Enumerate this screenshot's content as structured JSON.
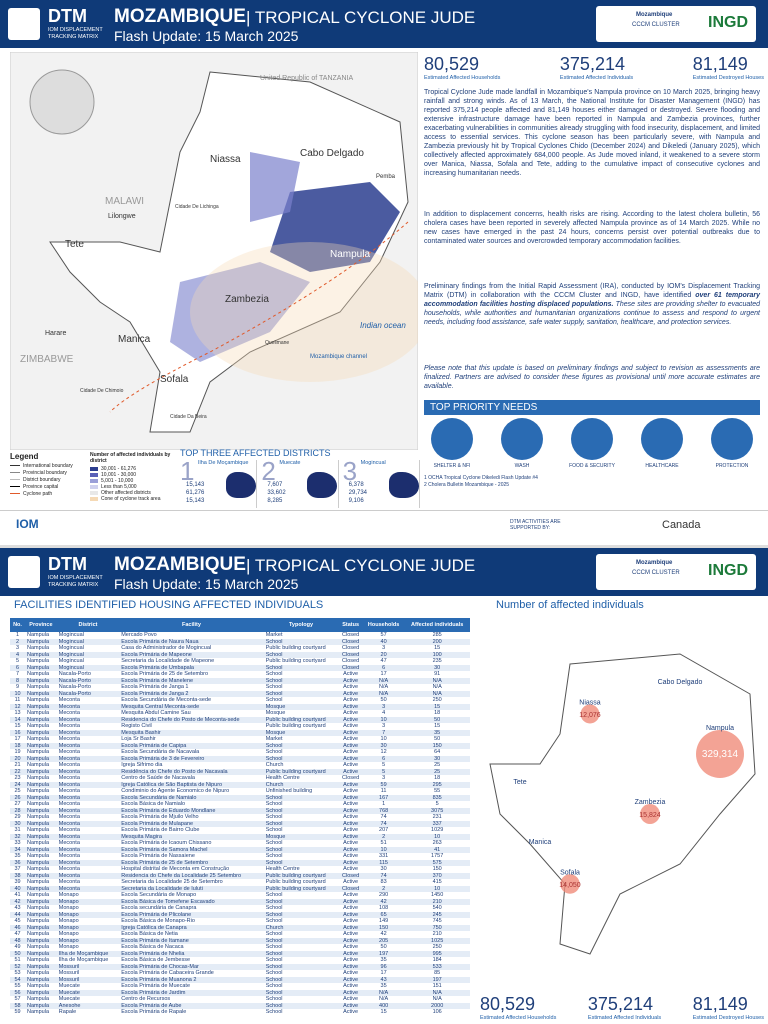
{
  "page1": {
    "header": {
      "org": "DTM",
      "org_sub": "IOM DISPLACEMENT TRACKING MATRIX",
      "country": "MOZAMBIQUE",
      "event": "| TROPICAL CYCLONE JUDE",
      "update": "Flash Update: 15 March 2025",
      "partner": "Mozambique",
      "partner_sub": "CCCM CLUSTER",
      "ingd": "INGD"
    },
    "stats": [
      {
        "value": "80,529",
        "label": "Estimated Affected Households"
      },
      {
        "value": "375,214",
        "label": "Estimated Affected Individuals"
      },
      {
        "value": "81,149",
        "label": "Estimated Destroyed Houses"
      }
    ],
    "paragraphs": [
      "Tropical Cyclone Jude made landfall in Mozambique's Nampula province on 10 March 2025, bringing heavy rainfall and strong winds. As of 13 March, the National Institute for Disaster Management (INGD) has reported 375,214 people affected and 81,149 houses either damaged or destroyed. Severe flooding and extensive infrastructure damage have been reported in Nampula and Zambezia provinces, further exacerbating vulnerabilities in communities already struggling with food insecurity, displacement, and limited access to essential services. This cyclone season has been particularly severe, with Nampula and Zambezia previously hit by Tropical Cyclones Chido (December 2024) and Dikeledi (January 2025), which collectively affected approximately 684,000 people. As Jude moved inland, it weakened to a severe storm over Manica, Niassa, Sofala and Tete, adding to the cumulative impact of consecutive cyclones and increasing humanitarian needs.",
      "In addition to displacement concerns, health risks are rising. According to the latest cholera bulletin, 56 cholera cases have been reported in severely affected Nampula province as of 14 March 2025. While no new cases have emerged in the past 24 hours, concerns persist over potential outbreaks due to contaminated water sources and overcrowded temporary accommodation facilities."
    ],
    "paragraph3": {
      "start": "Preliminary findings from the Initial Rapid Assessment (IRA), conducted by IOM's Displacement Tracking Matrix (DTM) in collaboration with the CCCM Cluster and INGD, have identified ",
      "bold": "over 61 temporary accommodation facilities hosting displaced populations.",
      "end": " These sites are providing shelter to evacuated households, while authorities and humanitarian organizations continue to assess and respond to urgent needs, including food assistance, safe water supply, sanitation, healthcare, and protection services."
    },
    "note": "Please note that this update is based on preliminary findings and subject to revision as assessments are finalized. Partners are advised to consider these figures as provisional until more accurate estimates are available.",
    "priority_needs": {
      "title": "TOP PRIORITY NEEDS",
      "items": [
        "SHELTER & NFI",
        "WASH",
        "FOOD & SECURITY",
        "HEALTHCARE",
        "PROTECTION"
      ]
    },
    "footnotes": [
      "1 OCHA Tropical Cyclone Dikeledi Flash Update #4",
      "2 Cholera Bulletin Mozambique - 2025"
    ],
    "top_districts": {
      "title": "TOP THREE AFFECTED DISTRICTS",
      "items": [
        {
          "rank": "1",
          "name": "Ilha De Moçambique",
          "figures": [
            "15,143",
            "61,276",
            "15,143"
          ]
        },
        {
          "rank": "2",
          "name": "Muecate",
          "figures": [
            "7,607",
            "33,602",
            "8,285"
          ]
        },
        {
          "rank": "3",
          "name": "Mogincual",
          "figures": [
            "6,378",
            "29,734",
            "9,106"
          ]
        }
      ]
    },
    "legend": {
      "title": "Legend",
      "items": [
        "International boundary",
        "Provincial boundary",
        "District boundary",
        "Province capital",
        "Cyclone path"
      ],
      "scale_title": "Number of affected individuals by district",
      "scale": [
        "30,001 - 61,276",
        "10,001 - 30,000",
        "5,001 - 10,000",
        "Less than 5,000",
        "Other affected districts",
        "Cone of cyclone track area"
      ]
    },
    "map_labels": {
      "tanzania": "United Republic of TANZANIA",
      "malawi": "MALAWI",
      "zimbabwe": "ZIMBABWE",
      "niassa": "Niassa",
      "cabo": "Cabo Delgado",
      "nampula": "Nampula",
      "zambezia": "Zambezia",
      "tete": "Tete",
      "manica": "Manica",
      "sofala": "Sofala",
      "ocean": "Indian ocean",
      "channel": "Mozambique channel",
      "harare": "Harare",
      "lilongwe": "Lilongwe",
      "pemba": "Pemba",
      "lichinga": "Cidade De Lichinga",
      "chimoio": "Cidade De Chimoio",
      "beira": "Cidade Da Beira",
      "quelimane": "Quelimane"
    },
    "supported_by": "DTM ACTIVITIES ARE SUPPORTED BY:",
    "iom": "IOM",
    "canada": "Canada"
  },
  "page2": {
    "table_title": "FACILITIES IDENTIFIED HOUSING AFFECTED INDIVIDUALS",
    "columns": [
      "No.",
      "Province",
      "District",
      "Facility",
      "Typology",
      "Status",
      "Households",
      "Affected individuals"
    ],
    "rows": [
      [
        "1",
        "Nampula",
        "Mogincual",
        "Mercado Povo",
        "Market",
        "Closed",
        "57",
        "285"
      ],
      [
        "2",
        "Nampula",
        "Mogincual",
        "Escola Primária de Naura Naua",
        "School",
        "Closed",
        "40",
        "200"
      ],
      [
        "3",
        "Nampula",
        "Mogincual",
        "Casa do Administrador de Mogincual",
        "Public building courtyard",
        "Closed",
        "3",
        "15"
      ],
      [
        "4",
        "Nampula",
        "Mogincual",
        "Escola Primária de Mapeone",
        "School",
        "Closed",
        "20",
        "100"
      ],
      [
        "5",
        "Nampula",
        "Mogincual",
        "Secretaria da Localidade de Mapeone",
        "Public building courtyard",
        "Closed",
        "47",
        "235"
      ],
      [
        "6",
        "Nampula",
        "Mogincual",
        "Escola Primária de Umbapala",
        "School",
        "Closed",
        "6",
        "30"
      ],
      [
        "7",
        "Nampula",
        "Nacala-Porto",
        "Escola Primária de 25 de Setembro",
        "School",
        "Active",
        "17",
        "91"
      ],
      [
        "8",
        "Nampula",
        "Nacala-Porto",
        "Escola Primária de Manelene",
        "School",
        "Active",
        "N/A",
        "N/A"
      ],
      [
        "9",
        "Nampula",
        "Nacala-Porto",
        "Escola Primária de Janga 1",
        "School",
        "Active",
        "N/A",
        "N/A"
      ],
      [
        "10",
        "Nampula",
        "Nacala-Porto",
        "Escola Primária de Janga 2",
        "School",
        "Active",
        "N/A",
        "N/A"
      ],
      [
        "11",
        "Nampula",
        "Meconta",
        "Escola Secundária de Meconta-sede",
        "School",
        "Active",
        "50",
        "250"
      ],
      [
        "12",
        "Nampula",
        "Meconta",
        "Mesquita Central Meconta-sede",
        "Mosque",
        "Active",
        "3",
        "15"
      ],
      [
        "13",
        "Nampula",
        "Meconta",
        "Mesquita Abdul Camine Sau",
        "Mosque",
        "Active",
        "4",
        "18"
      ],
      [
        "14",
        "Nampula",
        "Meconta",
        "Residencia do Chefe do Posto de Meconta-sede",
        "Public building courtyard",
        "Active",
        "10",
        "50"
      ],
      [
        "15",
        "Nampula",
        "Meconta",
        "Registo Civil",
        "Public building courtyard",
        "Active",
        "3",
        "15"
      ],
      [
        "16",
        "Nampula",
        "Meconta",
        "Mesquita Bashir",
        "Mosque",
        "Active",
        "7",
        "35"
      ],
      [
        "17",
        "Nampula",
        "Meconta",
        "Loja Sr Bashir",
        "Market",
        "Active",
        "10",
        "50"
      ],
      [
        "18",
        "Nampula",
        "Meconta",
        "Escola Primária de Capipa",
        "School",
        "Active",
        "30",
        "150"
      ],
      [
        "19",
        "Nampula",
        "Meconta",
        "Escola Secundária de Nacavala",
        "School",
        "Active",
        "12",
        "64"
      ],
      [
        "20",
        "Nampula",
        "Meconta",
        "Escola Primária de 3 de Fevereiro",
        "School",
        "Active",
        "6",
        "30"
      ],
      [
        "21",
        "Nampula",
        "Meconta",
        "Igreja Sifrimo dia",
        "Church",
        "Active",
        "5",
        "25"
      ],
      [
        "22",
        "Nampula",
        "Meconta",
        "Residência do Chefe do Posto de Nacavala",
        "Public building courtyard",
        "Active",
        "5",
        "25"
      ],
      [
        "23",
        "Nampula",
        "Meconta",
        "Centro de Saúde de Nacavala",
        "Health Centre",
        "Closed",
        "3",
        "18"
      ],
      [
        "24",
        "Nampula",
        "Meconta",
        "Igreja Católica de São Baptista de Nipuro",
        "Church",
        "Active",
        "59",
        "295"
      ],
      [
        "25",
        "Nampula",
        "Meconta",
        "Condiminio do Agente Economico de Nipuro",
        "Unfinished building",
        "Active",
        "11",
        "55"
      ],
      [
        "26",
        "Nampula",
        "Meconta",
        "Escola Secundária de Namialo",
        "School",
        "Active",
        "167",
        "835"
      ],
      [
        "27",
        "Nampula",
        "Meconta",
        "Escola Básica de Namialo",
        "School",
        "Active",
        "1",
        "5"
      ],
      [
        "28",
        "Nampula",
        "Meconta",
        "Escola Primária de Eduardo Mondlane",
        "School",
        "Active",
        "768",
        "3075"
      ],
      [
        "29",
        "Nampula",
        "Meconta",
        "Escola Primária de Mjuilo Velho",
        "School",
        "Active",
        "74",
        "231"
      ],
      [
        "30",
        "Nampula",
        "Meconta",
        "Escola Primária de Mulapane",
        "School",
        "Active",
        "74",
        "337"
      ],
      [
        "31",
        "Nampula",
        "Meconta",
        "Escola Primária de Bairro Clube",
        "School",
        "Active",
        "207",
        "1029"
      ],
      [
        "32",
        "Nampula",
        "Meconta",
        "Mesquita Magira",
        "Mosque",
        "Active",
        "2",
        "10"
      ],
      [
        "33",
        "Nampula",
        "Meconta",
        "Escola Primária de Icaoum Chissano",
        "School",
        "Active",
        "51",
        "263"
      ],
      [
        "34",
        "Nampula",
        "Meconta",
        "Escola Primária de Samora Machel",
        "School",
        "Active",
        "10",
        "41"
      ],
      [
        "35",
        "Nampula",
        "Meconta",
        "Escola Primária de Nassaiene",
        "School",
        "Active",
        "331",
        "1757"
      ],
      [
        "36",
        "Nampula",
        "Meconta",
        "Escola Primária de 25 de Setembro",
        "School",
        "Active",
        "115",
        "575"
      ],
      [
        "37",
        "Nampula",
        "Meconta",
        "Hospital distrital de Meconta em Construção",
        "Health Centre",
        "Active",
        "30",
        "150"
      ],
      [
        "38",
        "Nampula",
        "Meconta",
        "Residencia do Chefe da Localidade 25 Setembro",
        "Public building courtyard",
        "Closed",
        "74",
        "370"
      ],
      [
        "39",
        "Nampula",
        "Meconta",
        "Secretaria da Localidade 25 de Setembro",
        "Public building courtyard",
        "Active",
        "83",
        "415"
      ],
      [
        "40",
        "Nampula",
        "Meconta",
        "Secretaria da Localidade de Iuluti",
        "Public building courtyard",
        "Closed",
        "2",
        "10"
      ],
      [
        "41",
        "Nampula",
        "Monapo",
        "Escola Secundária de Monapo",
        "School",
        "Active",
        "290",
        "1450"
      ],
      [
        "42",
        "Nampula",
        "Monapo",
        "Escola Básica de Tomefene Escavado",
        "School",
        "Active",
        "42",
        "210"
      ],
      [
        "43",
        "Nampula",
        "Monapo",
        "Escola secundária de Canapra",
        "School",
        "Active",
        "108",
        "540"
      ],
      [
        "44",
        "Nampula",
        "Monapo",
        "Escola Primária de Plicolane",
        "School",
        "Active",
        "65",
        "245"
      ],
      [
        "45",
        "Nampula",
        "Monapo",
        "Escola Básica de Monapo-Rio",
        "School",
        "Active",
        "149",
        "745"
      ],
      [
        "46",
        "Nampula",
        "Monapo",
        "Igreja Católica de Canapra",
        "Church",
        "Active",
        "150",
        "750"
      ],
      [
        "47",
        "Nampula",
        "Monapo",
        "Escola Básica de Netia",
        "School",
        "Active",
        "42",
        "210"
      ],
      [
        "48",
        "Nampula",
        "Monapo",
        "Escola Primária de Itamane",
        "School",
        "Active",
        "205",
        "1025"
      ],
      [
        "49",
        "Nampula",
        "Monapo",
        "Escola Básica de Nacaca",
        "School",
        "Active",
        "50",
        "250"
      ],
      [
        "50",
        "Nampula",
        "Ilha de Moçambique",
        "Escola Primária de Nhelia",
        "School",
        "Active",
        "197",
        "995"
      ],
      [
        "51",
        "Nampula",
        "Ilha de Moçambique",
        "Escola Básica de Jembesse",
        "School",
        "Active",
        "35",
        "184"
      ],
      [
        "52",
        "Nampula",
        "Mossuril",
        "Escola Primária de Chocas-Mar",
        "School",
        "Active",
        "96",
        "533"
      ],
      [
        "53",
        "Nampula",
        "Mossuril",
        "Escola Primária de Cabaceira Grande",
        "School",
        "Active",
        "17",
        "85"
      ],
      [
        "54",
        "Nampula",
        "Mossuril",
        "Escola Primária de Muanona 2",
        "School",
        "Active",
        "43",
        "197"
      ],
      [
        "55",
        "Nampula",
        "Muecate",
        "Escola Primária de Muecate",
        "School",
        "Active",
        "35",
        "151"
      ],
      [
        "56",
        "Nampula",
        "Muecate",
        "Escola Primária de Jardim",
        "School",
        "Active",
        "N/A",
        "N/A"
      ],
      [
        "57",
        "Nampula",
        "Muecate",
        "Centro de Recursos",
        "School",
        "Active",
        "N/A",
        "N/A"
      ],
      [
        "58",
        "Nampula",
        "Anesohe",
        "Escola Primária de Aube",
        "School",
        "Active",
        "400",
        "2000"
      ],
      [
        "59",
        "Nampula",
        "Rapale",
        "Escola Primária de Rapale",
        "School",
        "Active",
        "15",
        "106"
      ]
    ],
    "map_title": "Number of affected individuals",
    "bubbles": [
      {
        "name": "Niassa",
        "value": 12076,
        "label": "12,076"
      },
      {
        "name": "Nampula",
        "value": 329314,
        "label": "329,314"
      },
      {
        "name": "Zambezia",
        "value": 15824,
        "label": "15,824"
      },
      {
        "name": "Sofala",
        "value": 14050,
        "label": "14,050"
      }
    ],
    "other_provinces": [
      "Cabo Delgado",
      "Tete",
      "Manica"
    ]
  }
}
